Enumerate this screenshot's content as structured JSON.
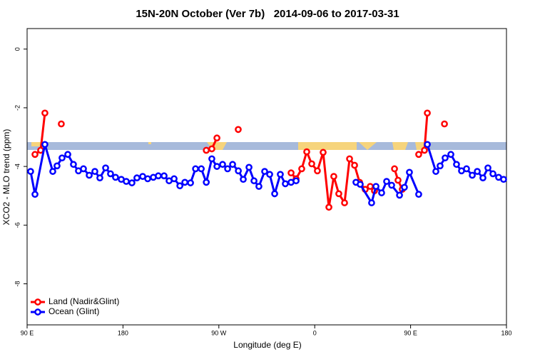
{
  "chart_data": {
    "type": "line",
    "title": "15N-20N October (Ver 7b)   2014-09-06 to 2017-03-31",
    "xlabel": "Longitude (deg E)",
    "ylabel": "XCO2 - MLO trend (ppm)",
    "xlim": [
      90,
      540
    ],
    "ylim": [
      -9.4,
      0.7
    ],
    "xticks": [
      {
        "value": 90,
        "label": "90 E"
      },
      180,
      {
        "value": 270,
        "label": "90 W"
      },
      {
        "value": 360,
        "label": "0"
      },
      {
        "value": 450,
        "label": "90 E"
      },
      {
        "value": 540,
        "label": "180"
      }
    ],
    "yticks": [
      0,
      -2,
      -4,
      -6,
      -8
    ],
    "legend": "bottom-left",
    "series": [
      {
        "name": "Land (Nadir&Glint)",
        "color": "#ff0000",
        "x": [
          97.4,
          102.7,
          106.7,
          null,
          122.1,
          null,
          258.2,
          263.4,
          268.2,
          null,
          288.2,
          null,
          337.8,
          342.5,
          347.8,
          352.5,
          357.2,
          362.5,
          367.9,
          373.3,
          377.9,
          382.6,
          388.0,
          392.7,
          397.4,
          402.1,
          407.4,
          412.1,
          416.1,
          null,
          434.9,
          438.2,
          442.2,
          null,
          457.6,
          463.0,
          465.7,
          null,
          481.8
        ],
        "values": [
          -3.59,
          -3.45,
          -2.18,
          null,
          -2.55,
          null,
          -3.45,
          -3.4,
          -3.03,
          null,
          -2.74,
          null,
          -4.22,
          -4.42,
          -4.08,
          -3.5,
          -3.91,
          -4.15,
          -3.52,
          -5.39,
          -4.34,
          -4.93,
          -5.24,
          -3.74,
          -3.96,
          -4.54,
          -4.78,
          -4.68,
          -4.83,
          null,
          -4.08,
          -4.47,
          -4.78,
          null,
          -3.59,
          -3.45,
          -2.18,
          null,
          -2.55
        ]
      },
      {
        "name": "Ocean (Glint)",
        "color": "#0000ff",
        "x": [
          93.3,
          97.4,
          106.7,
          114.1,
          118.1,
          122.8,
          128.2,
          133.5,
          138.2,
          142.9,
          148.3,
          153.6,
          158.3,
          163.7,
          168.3,
          173.0,
          178.4,
          183.1,
          188.4,
          193.1,
          198.5,
          203.2,
          208.5,
          213.2,
          218.6,
          223.3,
          228.0,
          233.4,
          238.1,
          243.4,
          248.1,
          253.5,
          258.2,
          263.4,
          268.2,
          273.5,
          278.2,
          282.9,
          288.3,
          292.9,
          298.3,
          303.0,
          307.6,
          313.0,
          317.7,
          322.4,
          327.7,
          332.4,
          337.8,
          342.5,
          null,
          398.7,
          402.7,
          413.4,
          417.5,
          422.8,
          427.5,
          432.2,
          439.6,
          444.2,
          448.9,
          457.6,
          null,
          465.7,
          473.7,
          477.7,
          482.4,
          487.8,
          493.1,
          497.8,
          502.5,
          507.9,
          512.6,
          517.9,
          522.6,
          527.3,
          532.6,
          537.3
        ],
        "values": [
          -4.17,
          -4.95,
          -3.25,
          -4.17,
          -3.98,
          -3.71,
          -3.59,
          -3.93,
          -4.15,
          -4.08,
          -4.3,
          -4.17,
          -4.39,
          -4.05,
          -4.25,
          -4.37,
          -4.44,
          -4.51,
          -4.56,
          -4.39,
          -4.34,
          -4.42,
          -4.37,
          -4.32,
          -4.32,
          -4.49,
          -4.42,
          -4.66,
          -4.54,
          -4.56,
          -4.08,
          -4.08,
          -4.54,
          -3.74,
          -4.0,
          -3.93,
          -4.08,
          -3.93,
          -4.15,
          -4.44,
          -4.03,
          -4.49,
          -4.68,
          -4.17,
          -4.27,
          -4.93,
          -4.27,
          -4.59,
          -4.54,
          -4.49,
          null,
          -4.54,
          -4.61,
          -5.24,
          -4.68,
          -4.9,
          -4.51,
          -4.64,
          -4.98,
          -4.71,
          -4.2,
          -4.95,
          null,
          -3.25,
          -4.17,
          -3.98,
          -3.71,
          -3.59,
          -3.93,
          -4.15,
          -4.08,
          -4.3,
          -4.17,
          -4.39,
          -4.05,
          -4.25,
          -4.37,
          -4.44
        ]
      }
    ]
  }
}
